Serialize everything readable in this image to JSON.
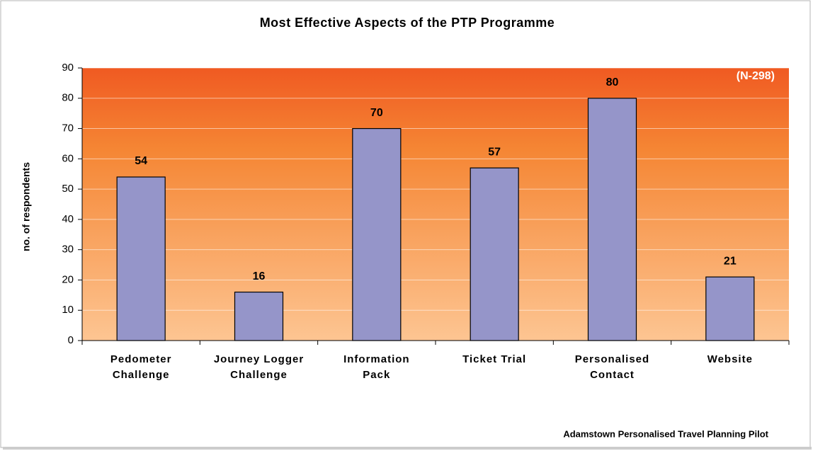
{
  "chart_data": {
    "type": "bar",
    "title": "Most Effective Aspects of the PTP Programme",
    "ylabel": "no. of respondents",
    "annotation": "(N-298)",
    "footer": "Adamstown Personalised Travel Planning Pilot",
    "categories": [
      "Pedometer Challenge",
      "Journey Logger Challenge",
      "Information Pack",
      "Ticket Trial",
      "Personalised Contact",
      "Website"
    ],
    "values": [
      54,
      16,
      70,
      57,
      80,
      21
    ],
    "color": "#9595c9",
    "ylim": [
      0,
      90
    ],
    "yticks": [
      0,
      10,
      20,
      30,
      40,
      50,
      60,
      70,
      80,
      90
    ],
    "grid": true
  }
}
